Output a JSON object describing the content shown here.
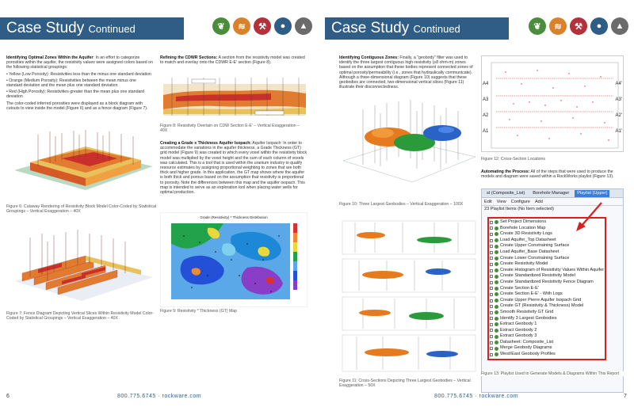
{
  "left_page": {
    "title": "Case Study",
    "title_suffix": "Continued",
    "col1": {
      "heading": "Identifying Optimal Zones Within the Aquifer",
      "intro": ": In an effort to categorize porosities within the aquifer, the resistivity values were assigned colors based on the following statistical groupings:",
      "bullets": [
        "• Yellow (Low Porosity): Resistivities less than the minus one standard deviation",
        "• Orange (Medium Porosity): Resistivities between the mean minus one standard deviation and the mean plus one standard deviation",
        "• Red (High Porosity): Resistivities greater than the mean plus one standard deviation"
      ],
      "closing": "The color-coded inferred porosities were displayed as a block diagram with cutouts to view inside the model (Figure 6) and as a fence diagram (Figure 7).",
      "fig6_caption": "Figure 6: Cutaway Rendering of Resistivity Block Model Color-Coded by Statistical Groupings – Vertical Exaggeration – 40X",
      "fig7_caption": "Figure 7: Fence Diagram Depicting Vertical Slices Within Resistivity Model Color-Coded by Statistical Groupings – Vertical Exaggeration – 40X"
    },
    "col2": {
      "heading1": "Refining the CDWR Sections:",
      "text1": " A section from the resistivity model was created to match and overlay onto the CDWR E-E' section (Figure 8).",
      "fig8_caption": "Figure 8: Resistivity Overlain on CDW Section E-E' – Vertical Exaggeration – 40X",
      "heading2": "Creating a Grade x Thickness Aquifer Isopach:",
      "text2": " Aquifer Isopach: In order to accommodate the variations in the aquifer thickness, a Grade Thickness (GT) grid model (Figure 9) was created in which every voxel within the resistivity block model was multiplied by the voxel height and the sum of each column of voxels was calculated. This is a tool that is used within the uranium industry to qualify resource estimates by assigning proportional weighting to zones that are both thick and higher grade. In this application, the GT map shows where the aquifer is both thick and porous based on the assumption that resistivity is proportional to porosity. Note the differences between this map and the aquifer isopach. This map is intended to serve as an exploration tool when placing water wells for optimal production.",
      "fig9_title": "Grade (Resistivity) * Thickness Distribution",
      "fig9_caption": "Figure 9: Resistivity * Thickness (GT) Map"
    },
    "footer": "800.775.6745 · rockware.com",
    "page_number": "6"
  },
  "right_page": {
    "title": "Case Study",
    "title_suffix": "Continued",
    "col1": {
      "heading": "Identifying Contiguous Zones:",
      "text": " Finally, a \"geobody\" filter was used to identify the three largest contiguous high-resistivity (≥8 ohm-m) zones based on the assumption that these bodies represent connected zones of optimal porosity/permeability (i.e., zones that hydraulically communicate). Although a three-dimensional diagram (Figure 10) suggests that these geobodies are connected, two-dimensional vertical slices (Figure 11) illustrate their disconnectedness.",
      "fig10_caption": "Figure 10: Three Largest Geobodies – Vertical Exaggeration – 100X",
      "fig11_caption": "Figure 11: Cross-Sections Depicting Three Largest Geobodies – Vertical Exaggeration – 50X"
    },
    "col2": {
      "fig12_labels_left": [
        "A4",
        "A3",
        "A2",
        "A1"
      ],
      "fig12_labels_right": [
        "A4'",
        "A3'",
        "A2'",
        "A1'"
      ],
      "fig12_caption": "Figure 12: Cross-Section Locations",
      "heading": "Automating the Process:",
      "text": " All of the steps that were used to produce the models and diagram were saved within a RockWorks playlist (Figure 13).",
      "fig13_caption": "Figure 13: Playlist Used to Generate Models & Diagrams Within This Report"
    },
    "playlist": {
      "tabs": [
        "st (Composite_List)",
        "Borehole Manager",
        "Playlist (Upper)"
      ],
      "tools": [
        "Edit",
        "View",
        "Configure",
        "Add"
      ],
      "count": "23 Playlist Items (No Item selected)",
      "items": [
        "Set Project Dimensions",
        "Borehole Location Map",
        "Create 3D Resistivity Logs",
        "Load Aquifer_Top Datasheet",
        "Create Upper Constraining Surface",
        "Load Aquifer_Base Datasheet",
        "Create Lower Constraining Surface",
        "Create Resistivity Model",
        "Create Histogram of Resistivity Values Within Aquifer",
        "Create Standardized Resistivity Model",
        "Create Standardized Resistivity Fence Diagram",
        "Create Section E-E'",
        "Create Section E-E' - With Logs",
        "Create Upper Pierre Aquifer Isopach Grid",
        "Create GT (Resistivity & Thickness) Model",
        "Smooth Resistivity GT Grid",
        "Identify 3 Largest Geobodies",
        "Extract Geobody 1",
        "Extract Geobody 2",
        "Extract Geobody 3",
        "Datasheet: Composite_List",
        "Merge Geobody Diagrams",
        "West/East Geobody Profiles"
      ]
    },
    "footer": "800.775.6745 · rockware.com",
    "page_number": "7"
  }
}
